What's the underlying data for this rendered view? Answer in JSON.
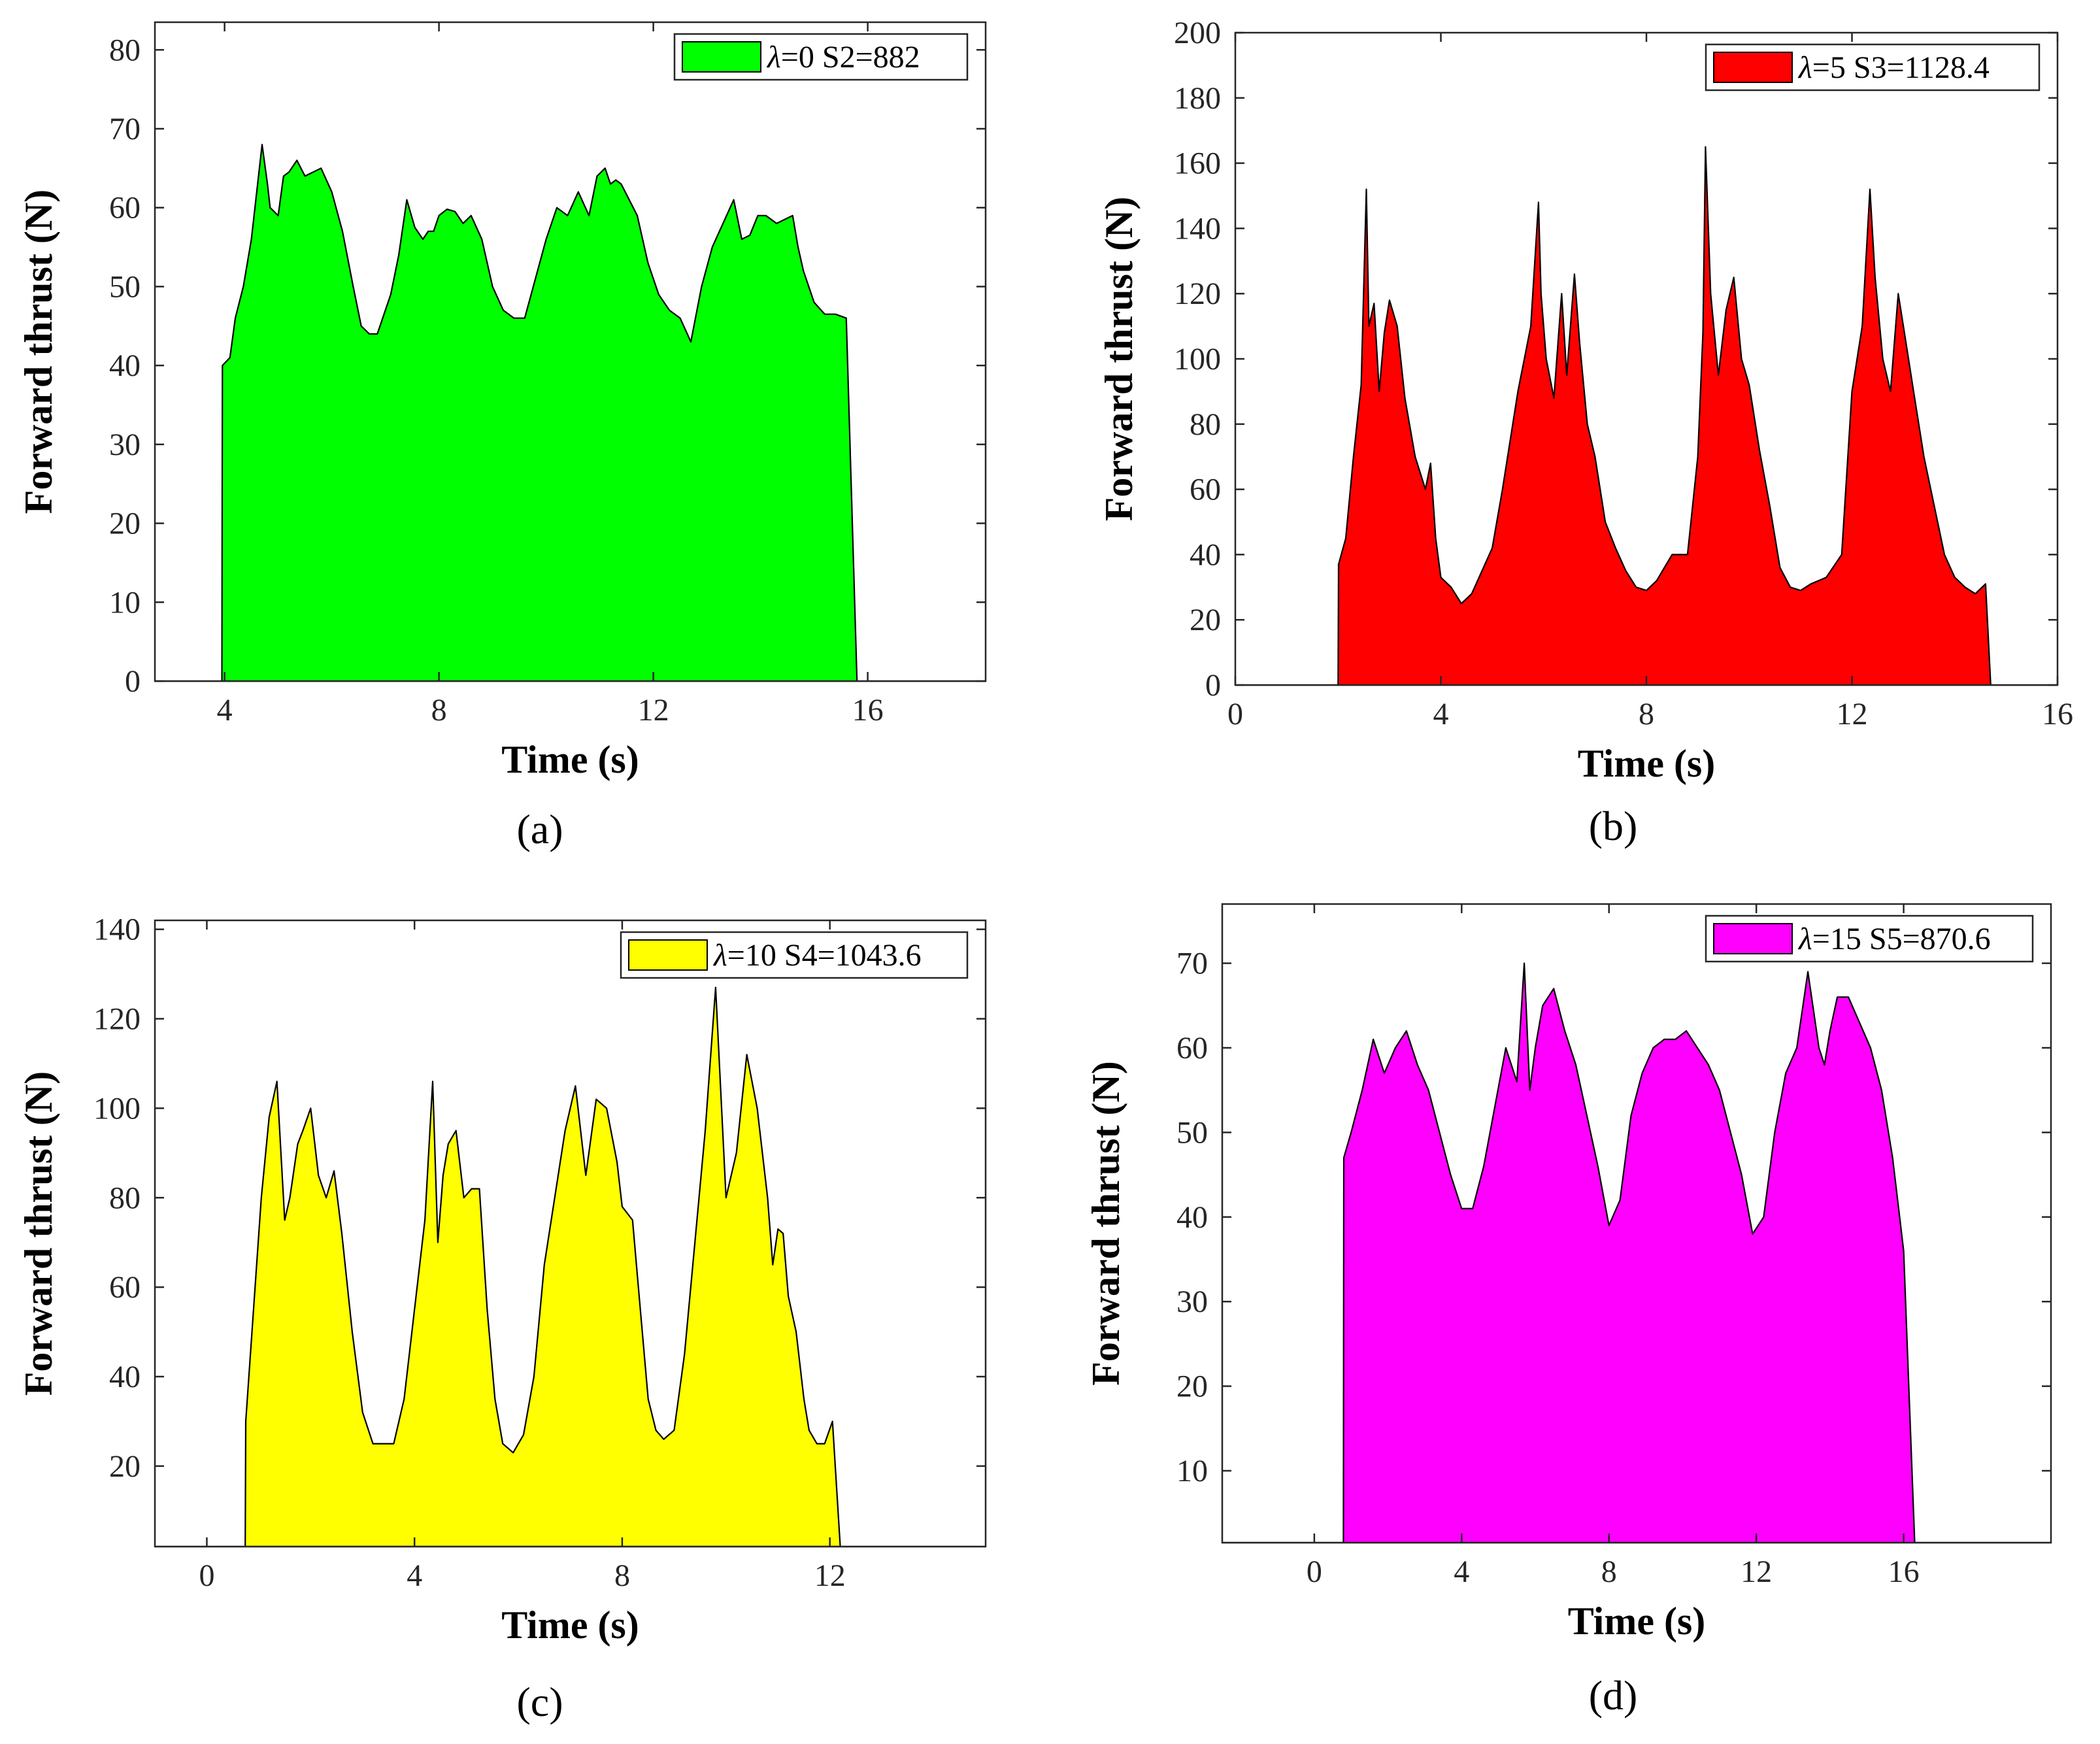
{
  "chart_data": [
    {
      "type": "area",
      "caption": "(a)",
      "xlabel": "Time (s)",
      "ylabel": "Forward thrust (N)",
      "xlim": [
        2.7,
        18.2
      ],
      "ylim": [
        0,
        83.5
      ],
      "xticks": [
        4,
        8,
        12,
        16
      ],
      "yticks": [
        0,
        10,
        20,
        30,
        40,
        50,
        60,
        70,
        80
      ],
      "fill_color": "#00ff00",
      "legend": {
        "lambda": "λ",
        "text": "=0  S2=882",
        "position": "top-right"
      },
      "x": [
        2.7,
        3.95,
        3.96,
        4.1,
        4.2,
        4.35,
        4.5,
        4.6,
        4.7,
        4.8,
        4.85,
        5.0,
        5.1,
        5.2,
        5.35,
        5.5,
        5.65,
        5.8,
        6.0,
        6.2,
        6.4,
        6.55,
        6.7,
        6.85,
        7.0,
        7.1,
        7.25,
        7.4,
        7.55,
        7.7,
        7.8,
        7.9,
        8.0,
        8.15,
        8.3,
        8.45,
        8.6,
        8.8,
        9.0,
        9.2,
        9.4,
        9.6,
        9.8,
        10.0,
        10.2,
        10.4,
        10.6,
        10.8,
        10.95,
        11.1,
        11.2,
        11.3,
        11.4,
        11.55,
        11.7,
        11.9,
        12.1,
        12.3,
        12.5,
        12.7,
        12.9,
        13.1,
        13.3,
        13.5,
        13.65,
        13.8,
        13.95,
        14.1,
        14.3,
        14.45,
        14.6,
        14.7,
        14.8,
        15.0,
        15.2,
        15.4,
        15.6,
        15.8,
        16.0,
        16.1,
        16.3,
        16.5,
        16.6,
        16.62,
        18.2
      ],
      "y": [
        0,
        0,
        40,
        41,
        46,
        50,
        56,
        62,
        68,
        63,
        60,
        59,
        64,
        64.5,
        66,
        64,
        64.5,
        65,
        62,
        57,
        50,
        45,
        44,
        44,
        47,
        49,
        54,
        61,
        57.5,
        56,
        57,
        57,
        59,
        59.8,
        59.5,
        58,
        59,
        56,
        50,
        47,
        46,
        46,
        51,
        56,
        60,
        59,
        62,
        59,
        64,
        65,
        63,
        63.5,
        63,
        61,
        59,
        53,
        49,
        47,
        46,
        43,
        50,
        55,
        58,
        61,
        56,
        56.5,
        59,
        59,
        58,
        58.5,
        59,
        55,
        52,
        48,
        46.5,
        46.5,
        46,
        0,
        0,
        0,
        0,
        0,
        0,
        0,
        0
      ]
    },
    {
      "type": "area",
      "caption": "(b)",
      "xlabel": "Time (s)",
      "ylabel": "Forward thrust (N)",
      "xlim": [
        0,
        16
      ],
      "ylim": [
        0,
        200
      ],
      "xticks": [
        0,
        4,
        8,
        12,
        16
      ],
      "yticks": [
        0,
        20,
        40,
        60,
        80,
        100,
        120,
        140,
        160,
        180,
        200
      ],
      "fill_color": "#ff0000",
      "legend": {
        "lambda": "λ",
        "text": "=5  S3=1128.4",
        "position": "top-right"
      },
      "x": [
        0,
        2.0,
        2.01,
        2.15,
        2.3,
        2.45,
        2.55,
        2.6,
        2.7,
        2.8,
        2.9,
        3.0,
        3.15,
        3.3,
        3.5,
        3.7,
        3.8,
        3.9,
        4.0,
        4.2,
        4.4,
        4.6,
        4.8,
        5.0,
        5.2,
        5.5,
        5.75,
        5.9,
        5.95,
        6.05,
        6.2,
        6.35,
        6.45,
        6.6,
        6.7,
        6.85,
        7.0,
        7.2,
        7.4,
        7.6,
        7.8,
        8.0,
        8.2,
        8.5,
        8.8,
        9.0,
        9.1,
        9.15,
        9.25,
        9.4,
        9.55,
        9.7,
        9.85,
        10.0,
        10.2,
        10.4,
        10.6,
        10.8,
        11.0,
        11.2,
        11.5,
        11.8,
        12.0,
        12.2,
        12.35,
        12.45,
        12.6,
        12.75,
        12.9,
        13.05,
        13.2,
        13.4,
        13.6,
        13.8,
        14.0,
        14.2,
        14.4,
        14.6,
        14.7,
        14.75,
        16
      ],
      "y": [
        0,
        0,
        37,
        45,
        70,
        92,
        152,
        110,
        117,
        90,
        108,
        118,
        110,
        88,
        70,
        60,
        68,
        45,
        33,
        30,
        25,
        28,
        35,
        42,
        60,
        90,
        110,
        148,
        120,
        100,
        88,
        120,
        95,
        126,
        105,
        80,
        70,
        50,
        42,
        35,
        30,
        29,
        32,
        40,
        40,
        70,
        108,
        165,
        120,
        95,
        115,
        125,
        100,
        92,
        72,
        55,
        36,
        30,
        29,
        31,
        33,
        40,
        90,
        110,
        152,
        125,
        100,
        90,
        120,
        105,
        90,
        70,
        55,
        40,
        33,
        30,
        28,
        31,
        0,
        0,
        0
      ],
      "note_x_order": "sorted"
    },
    {
      "type": "area",
      "caption": "(c)",
      "xlabel": "Time (s)",
      "ylabel": "Forward thrust (N)",
      "xlim": [
        -1,
        15
      ],
      "ylim": [
        2,
        142
      ],
      "xticks": [
        0,
        4,
        8,
        12
      ],
      "yticks": [
        20,
        40,
        60,
        80,
        100,
        120,
        140
      ],
      "fill_color": "#ffff00",
      "legend": {
        "lambda": "λ",
        "text": "=10  S4=1043.6",
        "position": "top-right"
      },
      "x": [
        -1,
        0.74,
        0.75,
        0.9,
        1.05,
        1.2,
        1.35,
        1.5,
        1.6,
        1.75,
        1.85,
        2.0,
        2.15,
        2.3,
        2.45,
        2.6,
        2.8,
        3.0,
        3.2,
        3.4,
        3.6,
        3.8,
        4.0,
        4.2,
        4.35,
        4.45,
        4.55,
        4.65,
        4.8,
        4.95,
        5.1,
        5.25,
        5.4,
        5.55,
        5.7,
        5.9,
        6.1,
        6.3,
        6.5,
        6.7,
        6.9,
        7.1,
        7.3,
        7.5,
        7.7,
        7.9,
        8.0,
        8.2,
        8.35,
        8.5,
        8.65,
        8.8,
        9.0,
        9.2,
        9.4,
        9.6,
        9.8,
        10.0,
        10.2,
        10.4,
        10.6,
        10.8,
        10.9,
        11.0,
        11.1,
        11.2,
        11.35,
        11.5,
        11.6,
        11.75,
        11.9,
        12.05,
        12.2,
        12.35,
        12.5,
        12.7,
        12.9,
        13.1,
        13.3,
        13.4,
        13.41,
        15
      ],
      "y": [
        2,
        2,
        30,
        55,
        80,
        98,
        106,
        75,
        80,
        92,
        95,
        100,
        85,
        80,
        86,
        72,
        50,
        32,
        25,
        25,
        25,
        35,
        55,
        75,
        106,
        70,
        85,
        92,
        95,
        80,
        82,
        82,
        55,
        35,
        25,
        23,
        27,
        40,
        65,
        80,
        95,
        105,
        85,
        102,
        100,
        88,
        78,
        75,
        55,
        35,
        28,
        26,
        28,
        45,
        70,
        95,
        127,
        80,
        90,
        112,
        100,
        80,
        65,
        73,
        72,
        58,
        50,
        35,
        28,
        25,
        25,
        30,
        2,
        2,
        2,
        2,
        2,
        2,
        2,
        2,
        2,
        2
      ]
    },
    {
      "type": "area",
      "caption": "(d)",
      "xlabel": "Time (s)",
      "ylabel": "Forward thrust (N)",
      "xlim": [
        -2.5,
        20
      ],
      "ylim": [
        1.5,
        77
      ],
      "xticks": [
        0,
        4,
        8,
        12,
        16
      ],
      "yticks": [
        10,
        20,
        30,
        40,
        50,
        60,
        70
      ],
      "fill_color": "#ff00ff",
      "legend": {
        "lambda": "λ",
        "text": "=15  S5=870.6",
        "position": "top-right"
      },
      "x": [
        -2.5,
        0.79,
        0.8,
        1.0,
        1.3,
        1.6,
        1.9,
        2.2,
        2.5,
        2.8,
        3.1,
        3.4,
        3.7,
        4.0,
        4.3,
        4.6,
        4.9,
        5.2,
        5.5,
        5.7,
        5.85,
        6.0,
        6.2,
        6.5,
        6.8,
        7.1,
        7.4,
        7.7,
        8.0,
        8.3,
        8.6,
        8.9,
        9.2,
        9.5,
        9.8,
        10.1,
        10.4,
        10.7,
        11.0,
        11.3,
        11.6,
        11.9,
        12.2,
        12.5,
        12.8,
        13.1,
        13.4,
        13.7,
        13.85,
        14.0,
        14.2,
        14.5,
        14.8,
        15.1,
        15.4,
        15.7,
        16.0,
        16.3,
        16.6,
        16.7,
        16.71,
        20
      ],
      "y": [
        1.5,
        1.5,
        47,
        50,
        55,
        61,
        57,
        60,
        62,
        58,
        55,
        50,
        45,
        41,
        41,
        46,
        53,
        60,
        56,
        70,
        55,
        60,
        65,
        67,
        62,
        58,
        52,
        46,
        39,
        42,
        52,
        57,
        60,
        61,
        61,
        62,
        60,
        58,
        55,
        50,
        45,
        38,
        40,
        50,
        57,
        60,
        69,
        60,
        58,
        62,
        66,
        66,
        63,
        60,
        55,
        47,
        36,
        1.5,
        1.5,
        1.5,
        1.5,
        1.5
      ]
    }
  ]
}
